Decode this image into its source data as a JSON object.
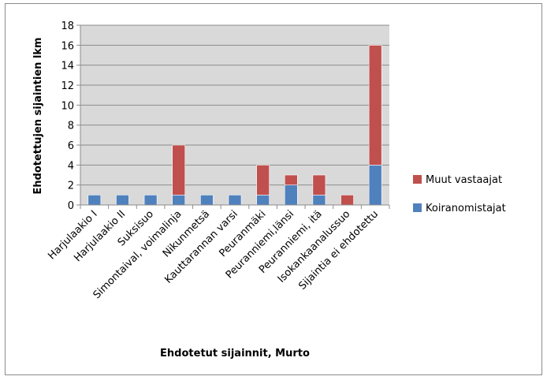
{
  "chart_data": {
    "type": "bar",
    "stacked": true,
    "xlabel": "Ehdotetut sijainnit, Murto",
    "ylabel": "Ehdotettujen sijaintien lkm",
    "ylim": [
      0,
      18
    ],
    "yticks": [
      0,
      2,
      4,
      6,
      8,
      10,
      12,
      14,
      16,
      18
    ],
    "grid": true,
    "legend_position": "right",
    "categories": [
      "Harjulaakio I",
      "Harjulaakio II",
      "Suksisuo",
      "Simontaival, voimalinja",
      "Nikunmetsä",
      "Kauttarannan varsi",
      "Peuranmäki",
      "Peuranniemi,länsi",
      "Peuranniemi, itä",
      "Isokankaanalussuo",
      "Sijaintia ei ehdotettu"
    ],
    "series": [
      {
        "name": "Koiranomistajat",
        "color": "#4f81bd",
        "values": [
          1,
          1,
          1,
          1,
          1,
          1,
          1,
          2,
          1,
          0,
          4
        ]
      },
      {
        "name": "Muut vastaajat",
        "color": "#c0504d",
        "values": [
          0,
          0,
          0,
          5,
          0,
          0,
          3,
          1,
          2,
          1,
          12
        ]
      }
    ],
    "legend_order": [
      "Muut vastaajat",
      "Koiranomistajat"
    ],
    "plot_background": "#d9d9d9"
  }
}
